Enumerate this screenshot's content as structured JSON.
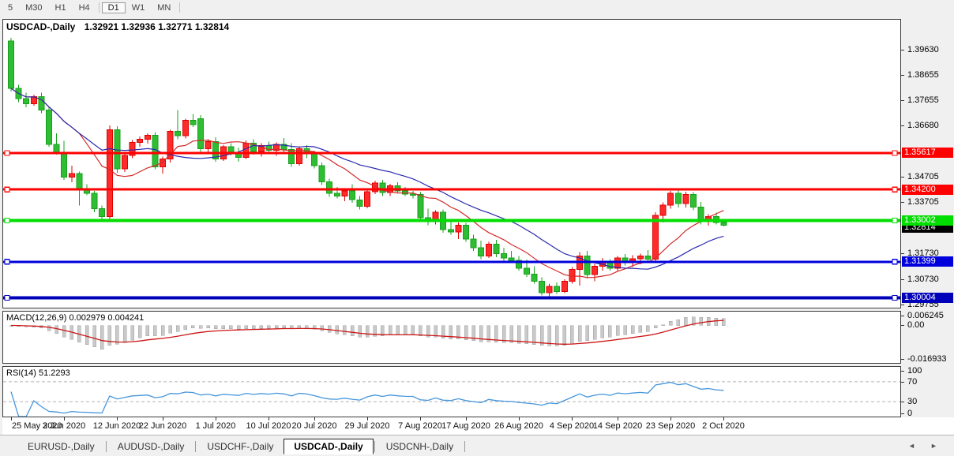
{
  "toolbar": {
    "timeframes": [
      "5",
      "M30",
      "H1",
      "H4",
      "D1",
      "W1",
      "MN"
    ],
    "active": "D1",
    "separators_after": [
      "H4",
      "MN"
    ]
  },
  "tabs": {
    "items": [
      "EURUSD-,Daily",
      "AUDUSD-,Daily",
      "USDCHF-,Daily",
      "USDCAD-,Daily",
      "USDCNH-,Daily"
    ],
    "active_index": 3,
    "scroll_left_icon": "◄",
    "scroll_right_icon": "►"
  },
  "chart_data": {
    "type": "candlestick",
    "title_symbol": "USDCAD-,Daily",
    "title_values": "1.32921 1.32936 1.32771 1.32814",
    "ohlc_current": {
      "open": 1.32921,
      "high": 1.32936,
      "low": 1.32771,
      "close": 1.32814
    },
    "colors": {
      "bull_fill": "#ff2b2b",
      "bull_stroke": "#dd0000",
      "bear_fill": "#2fbe33",
      "bear_stroke": "#17a01b",
      "ma_fast": "#d42a2a",
      "ma_slow": "#2a2aae",
      "hline_red": "#ff0000",
      "hline_green": "#00dd00",
      "hline_blue": "#0000dd",
      "macd_hist": "#c9c9c9",
      "macd_signal": "#cc1515",
      "rsi_line": "#4596dc",
      "badge_current_bg": "#000000"
    },
    "y_axis": {
      "range": [
        1.2962,
        1.4078
      ],
      "ticks": [
        "1.39630",
        "1.38655",
        "1.37655",
        "1.36680",
        "1.34705",
        "1.33705",
        "1.31730",
        "1.30730",
        "1.29755"
      ]
    },
    "hlines": [
      {
        "price": 1.35617,
        "label": "1.35617",
        "color": "#ff0000",
        "width": 3
      },
      {
        "price": 1.342,
        "label": "1.34200",
        "color": "#ff0000",
        "width": 3
      },
      {
        "price": 1.33002,
        "label": "1.33002",
        "color": "#00dd00",
        "width": 4
      },
      {
        "price": 1.31399,
        "label": "1.31399",
        "color": "#0000dd",
        "width": 3
      },
      {
        "price": 1.30004,
        "label": "1.30004",
        "color": "#0000bb",
        "width": 4
      }
    ],
    "current_price": {
      "value": 1.32814,
      "label": "1.32814"
    },
    "moving_averages": [
      {
        "window": 10,
        "color": "#d42a2a"
      },
      {
        "window": 20,
        "color": "#2a2aae"
      }
    ],
    "candles": [
      [
        1.3995,
        1.4008,
        1.38,
        1.3812
      ],
      [
        1.3812,
        1.3825,
        1.3758,
        1.3772
      ],
      [
        1.3772,
        1.3795,
        1.3738,
        1.3752
      ],
      [
        1.3752,
        1.3788,
        1.3745,
        1.378
      ],
      [
        1.378,
        1.3795,
        1.3715,
        1.3728
      ],
      [
        1.3728,
        1.374,
        1.3585,
        1.3595
      ],
      [
        1.3595,
        1.3638,
        1.3555,
        1.3565
      ],
      [
        1.3565,
        1.3608,
        1.3458,
        1.3468
      ],
      [
        1.3468,
        1.3512,
        1.3448,
        1.3482
      ],
      [
        1.3482,
        1.349,
        1.3358,
        1.3422
      ],
      [
        1.3422,
        1.344,
        1.3398,
        1.3405
      ],
      [
        1.3405,
        1.3415,
        1.3332,
        1.3345
      ],
      [
        1.3345,
        1.3358,
        1.3305,
        1.3315
      ],
      [
        1.3315,
        1.3668,
        1.3302,
        1.3652
      ],
      [
        1.3652,
        1.3665,
        1.3485,
        1.35
      ],
      [
        1.35,
        1.3565,
        1.3488,
        1.3552
      ],
      [
        1.3552,
        1.3612,
        1.3542,
        1.3602
      ],
      [
        1.3602,
        1.3625,
        1.3585,
        1.3615
      ],
      [
        1.3615,
        1.3638,
        1.3598,
        1.363
      ],
      [
        1.363,
        1.3642,
        1.3498,
        1.3508
      ],
      [
        1.3508,
        1.3548,
        1.3482,
        1.3538
      ],
      [
        1.3538,
        1.3652,
        1.3525,
        1.3645
      ],
      [
        1.3645,
        1.3728,
        1.3615,
        1.3628
      ],
      [
        1.3628,
        1.3695,
        1.3618,
        1.3688
      ],
      [
        1.3688,
        1.3712,
        1.3662,
        1.3672
      ],
      [
        1.3695,
        1.3708,
        1.3565,
        1.3578
      ],
      [
        1.3578,
        1.3615,
        1.3558,
        1.3605
      ],
      [
        1.3605,
        1.3622,
        1.3528,
        1.3538
      ],
      [
        1.3538,
        1.3592,
        1.353,
        1.3585
      ],
      [
        1.3585,
        1.36,
        1.3552,
        1.3565
      ],
      [
        1.3565,
        1.3582,
        1.3528,
        1.3545
      ],
      [
        1.3545,
        1.361,
        1.3538,
        1.36
      ],
      [
        1.36,
        1.3615,
        1.3555,
        1.3568
      ],
      [
        1.3568,
        1.36,
        1.3548,
        1.359
      ],
      [
        1.359,
        1.3605,
        1.3558,
        1.3572
      ],
      [
        1.3572,
        1.3602,
        1.355,
        1.3595
      ],
      [
        1.3595,
        1.362,
        1.3562,
        1.3575
      ],
      [
        1.3575,
        1.36,
        1.3508,
        1.352
      ],
      [
        1.352,
        1.3588,
        1.3512,
        1.3578
      ],
      [
        1.3578,
        1.3592,
        1.3542,
        1.3558
      ],
      [
        1.3558,
        1.357,
        1.3502,
        1.3512
      ],
      [
        1.3512,
        1.3525,
        1.3438,
        1.345
      ],
      [
        1.345,
        1.3462,
        1.3392,
        1.3405
      ],
      [
        1.3405,
        1.343,
        1.3385,
        1.3395
      ],
      [
        1.3395,
        1.3422,
        1.3375,
        1.3415
      ],
      [
        1.3415,
        1.344,
        1.3368,
        1.338
      ],
      [
        1.338,
        1.3395,
        1.3342,
        1.3355
      ],
      [
        1.3355,
        1.3422,
        1.3348,
        1.3412
      ],
      [
        1.3412,
        1.3455,
        1.3402,
        1.3445
      ],
      [
        1.3445,
        1.3458,
        1.3395,
        1.3408
      ],
      [
        1.3408,
        1.3442,
        1.3395,
        1.3435
      ],
      [
        1.3435,
        1.3448,
        1.3405,
        1.3415
      ],
      [
        1.3415,
        1.343,
        1.3395,
        1.3402
      ],
      [
        1.3402,
        1.3415,
        1.3385,
        1.34
      ],
      [
        1.34,
        1.341,
        1.3295,
        1.331
      ],
      [
        1.331,
        1.3345,
        1.3282,
        1.3295
      ],
      [
        1.3295,
        1.334,
        1.3285,
        1.3332
      ],
      [
        1.3332,
        1.3342,
        1.3252,
        1.3265
      ],
      [
        1.3265,
        1.3298,
        1.3245,
        1.3255
      ],
      [
        1.3255,
        1.3292,
        1.3228,
        1.3282
      ],
      [
        1.3282,
        1.329,
        1.3218,
        1.3228
      ],
      [
        1.3228,
        1.3245,
        1.3182,
        1.3195
      ],
      [
        1.3195,
        1.3222,
        1.315,
        1.3162
      ],
      [
        1.3162,
        1.3218,
        1.3155,
        1.3208
      ],
      [
        1.3208,
        1.3225,
        1.3158,
        1.3172
      ],
      [
        1.3172,
        1.3195,
        1.3142,
        1.3155
      ],
      [
        1.3155,
        1.3182,
        1.3135,
        1.3145
      ],
      [
        1.3145,
        1.3162,
        1.3105,
        1.3115
      ],
      [
        1.3115,
        1.3148,
        1.3082,
        1.3092
      ],
      [
        1.3092,
        1.3122,
        1.3055,
        1.3065
      ],
      [
        1.3065,
        1.308,
        1.301,
        1.302
      ],
      [
        1.302,
        1.3055,
        1.3005,
        1.3045
      ],
      [
        1.3045,
        1.306,
        1.3015,
        1.3025
      ],
      [
        1.3025,
        1.3072,
        1.3018,
        1.3065
      ],
      [
        1.3065,
        1.312,
        1.3055,
        1.311
      ],
      [
        1.311,
        1.3178,
        1.3048,
        1.3162
      ],
      [
        1.3162,
        1.3182,
        1.3075,
        1.309
      ],
      [
        1.309,
        1.3132,
        1.3065,
        1.3122
      ],
      [
        1.3122,
        1.3155,
        1.3105,
        1.314
      ],
      [
        1.314,
        1.315,
        1.3105,
        1.3115
      ],
      [
        1.3115,
        1.3162,
        1.3102,
        1.3155
      ],
      [
        1.3155,
        1.317,
        1.3125,
        1.314
      ],
      [
        1.314,
        1.3165,
        1.312,
        1.3152
      ],
      [
        1.3152,
        1.3172,
        1.313,
        1.3162
      ],
      [
        1.3162,
        1.3185,
        1.314,
        1.315
      ],
      [
        1.315,
        1.3332,
        1.3142,
        1.332
      ],
      [
        1.332,
        1.337,
        1.3292,
        1.336
      ],
      [
        1.336,
        1.3415,
        1.3345,
        1.3405
      ],
      [
        1.3405,
        1.3418,
        1.335,
        1.3365
      ],
      [
        1.3365,
        1.3412,
        1.335,
        1.34
      ],
      [
        1.34,
        1.341,
        1.334,
        1.3352
      ],
      [
        1.3352,
        1.3372,
        1.3285,
        1.33
      ],
      [
        1.33,
        1.3325,
        1.328,
        1.3315
      ],
      [
        1.3315,
        1.333,
        1.3285,
        1.3292
      ],
      [
        1.32921,
        1.32936,
        1.32771,
        1.32814
      ]
    ],
    "x_ticks": [
      [
        0,
        "25 May 2020"
      ],
      [
        7,
        "3 Jun 2020"
      ],
      [
        14,
        "12 Jun 2020"
      ],
      [
        20,
        "22 Jun 2020"
      ],
      [
        27,
        "1 Jul 2020"
      ],
      [
        34,
        "10 Jul 2020"
      ],
      [
        40,
        "20 Jul 2020"
      ],
      [
        47,
        "29 Jul 2020"
      ],
      [
        54,
        "7 Aug 2020"
      ],
      [
        60,
        "17 Aug 2020"
      ],
      [
        67,
        "26 Aug 2020"
      ],
      [
        74,
        "4 Sep 2020"
      ],
      [
        80,
        "14 Sep 2020"
      ],
      [
        87,
        "23 Sep 2020"
      ],
      [
        94,
        "2 Oct 2020"
      ]
    ],
    "macd": {
      "label": "MACD(12,26,9) 0.002979 0.004241",
      "fast": 12,
      "slow": 26,
      "signal": 9,
      "value": 0.002979,
      "signal_value": 0.004241,
      "range": [
        -0.0185,
        0.0068
      ],
      "ticks": [
        {
          "v": 0.006245,
          "label": "0.006245"
        },
        {
          "v": 0,
          "label": "0.00"
        },
        {
          "v": -0.016933,
          "label": "-0.016933"
        }
      ]
    },
    "rsi": {
      "label": "RSI(14) 51.2293",
      "period": 14,
      "value": 51.2293,
      "range": [
        0,
        100
      ],
      "ticks": [
        {
          "v": 100,
          "label": "100"
        },
        {
          "v": 70,
          "label": "70"
        },
        {
          "v": 30,
          "label": "30"
        },
        {
          "v": 0,
          "label": "0"
        }
      ],
      "levels": [
        70,
        30
      ]
    }
  }
}
